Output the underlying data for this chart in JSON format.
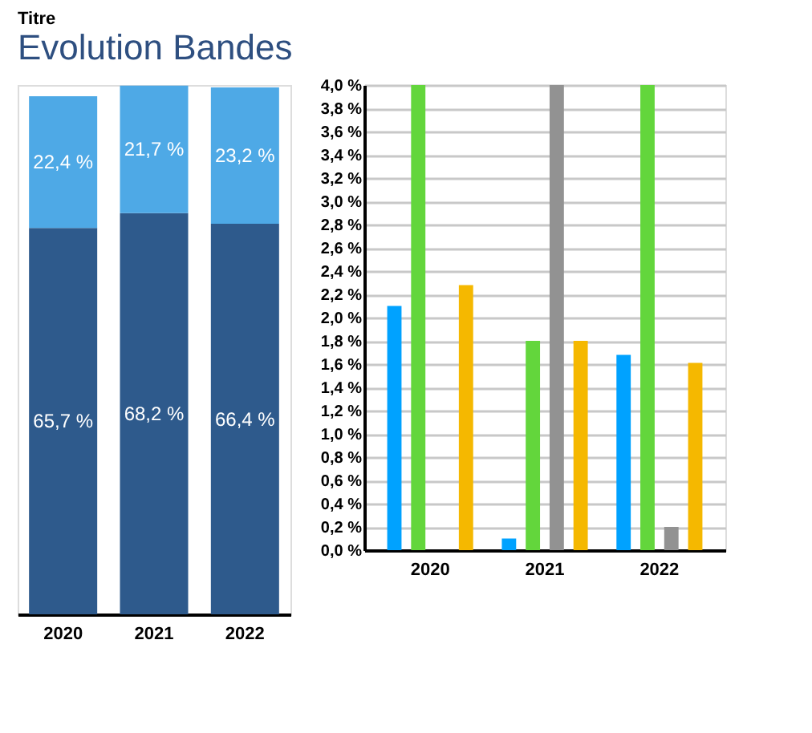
{
  "chart_data": [
    {
      "type": "bar",
      "title": "Titre",
      "subtitle": "Evolution Bandes",
      "categories": [
        "2020",
        "2021",
        "2022"
      ],
      "stacked": true,
      "grid": false,
      "legend": false,
      "series": [
        {
          "color": "#2e5a8c",
          "values": [
            65.7,
            68.2,
            66.4
          ],
          "value_labels": [
            "65,7 %",
            "68,2 %",
            "66,4 %"
          ]
        },
        {
          "color": "#4ea9e6",
          "values": [
            22.4,
            21.7,
            23.2
          ],
          "value_labels": [
            "22,4 %",
            "21,7 %",
            "23,2 %"
          ]
        }
      ]
    },
    {
      "type": "bar",
      "categories": [
        "2020",
        "2021",
        "2022"
      ],
      "grid": "y",
      "legend": false,
      "ylim": [
        0,
        4.0
      ],
      "yticks": [
        {
          "value": 0,
          "label": "0,0 %"
        },
        {
          "value": 0.2,
          "label": "0,2 %"
        },
        {
          "value": 0.4,
          "label": "0,4 %"
        },
        {
          "value": 0.6,
          "label": "0,6 %"
        },
        {
          "value": 0.8,
          "label": "0,8 %"
        },
        {
          "value": 1.0,
          "label": "1,0 %"
        },
        {
          "value": 1.2,
          "label": "1,2 %"
        },
        {
          "value": 1.4,
          "label": "1,4 %"
        },
        {
          "value": 1.6,
          "label": "1,6 %"
        },
        {
          "value": 1.8,
          "label": "1,8 %"
        },
        {
          "value": 2.0,
          "label": "2,0 %"
        },
        {
          "value": 2.2,
          "label": "2,2 %"
        },
        {
          "value": 2.4,
          "label": "2,4 %"
        },
        {
          "value": 2.6,
          "label": "2,6 %"
        },
        {
          "value": 2.8,
          "label": "2,8 %"
        },
        {
          "value": 3.0,
          "label": "3,0 %"
        },
        {
          "value": 3.2,
          "label": "3,2 %"
        },
        {
          "value": 3.4,
          "label": "3,4 %"
        },
        {
          "value": 3.6,
          "label": "3,6 %"
        },
        {
          "value": 3.8,
          "label": "3,8 %"
        },
        {
          "value": 4.0,
          "label": "4,0 %"
        }
      ],
      "series": [
        {
          "color": "#00a2ff",
          "values": [
            2.1,
            0.1,
            1.68
          ]
        },
        {
          "color": "#63d63c",
          "values": [
            4.0,
            1.8,
            4.0
          ]
        },
        {
          "color": "#929292",
          "values": [
            null,
            4.0,
            0.2
          ]
        },
        {
          "color": "#f5b800",
          "values": [
            2.28,
            1.8,
            1.61
          ]
        }
      ]
    }
  ]
}
